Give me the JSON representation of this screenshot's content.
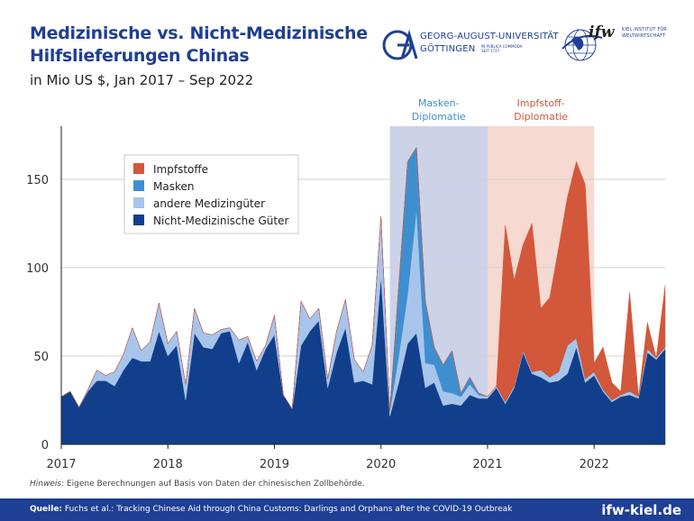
{
  "header": {
    "title": "Medizinische vs. Nicht-Medizinische Hilfslieferungen Chinas",
    "subtitle": "in Mio US $, Jan 2017 – Sep 2022"
  },
  "logos": {
    "goettingen_line1": "GEORG-AUGUST-UNIVERSITÄT",
    "goettingen_line2": "GÖTTINGEN",
    "goettingen_motto": "IN PUBLICA COMMODA\nSEIT 1737",
    "ifw_word": "ifw",
    "ifw_line1": "KIEL INSTITUT FÜR",
    "ifw_line2": "WELTWIRTSCHAFT"
  },
  "note": {
    "label": "Hinweis",
    "text": ": Eigene Berechnungen auf Basis von Daten der chinesischen Zollbehörde."
  },
  "footer": {
    "source_label": "Quelle:",
    "source_text": " Fuchs et al.: Tracking Chinese Aid through China Customs: Darlings and Orphans after the COVID-19 Outbreak",
    "brand": "ifw-kiel.de"
  },
  "chart_data": {
    "type": "area",
    "stacked": true,
    "x": [
      "2017-01",
      "2017-02",
      "2017-03",
      "2017-04",
      "2017-05",
      "2017-06",
      "2017-07",
      "2017-08",
      "2017-09",
      "2017-10",
      "2017-11",
      "2017-12",
      "2018-01",
      "2018-02",
      "2018-03",
      "2018-04",
      "2018-05",
      "2018-06",
      "2018-07",
      "2018-08",
      "2018-09",
      "2018-10",
      "2018-11",
      "2018-12",
      "2019-01",
      "2019-02",
      "2019-03",
      "2019-04",
      "2019-05",
      "2019-06",
      "2019-07",
      "2019-08",
      "2019-09",
      "2019-10",
      "2019-11",
      "2019-12",
      "2020-01",
      "2020-02",
      "2020-03",
      "2020-04",
      "2020-05",
      "2020-06",
      "2020-07",
      "2020-08",
      "2020-09",
      "2020-10",
      "2020-11",
      "2020-12",
      "2021-01",
      "2021-02",
      "2021-03",
      "2021-04",
      "2021-05",
      "2021-06",
      "2021-07",
      "2021-08",
      "2021-09",
      "2021-10",
      "2021-11",
      "2021-12",
      "2022-01",
      "2022-02",
      "2022-03",
      "2022-04",
      "2022-05",
      "2022-06",
      "2022-07",
      "2022-08",
      "2022-09"
    ],
    "x_tick_labels": [
      "2017",
      "2018",
      "2019",
      "2020",
      "2021",
      "2022"
    ],
    "ylim": [
      0,
      180
    ],
    "y_ticks": [
      0,
      50,
      100,
      150
    ],
    "grid": true,
    "legend_position": "top-left",
    "series": [
      {
        "name": "Nicht-Medizinische Güter",
        "color": "#123f8c",
        "values": [
          27,
          30,
          21,
          30,
          36,
          36,
          33,
          42,
          49,
          47,
          47,
          64,
          50,
          56,
          25,
          63,
          55,
          54,
          63,
          64,
          46,
          58,
          42,
          54,
          62,
          28,
          20,
          56,
          64,
          70,
          32,
          52,
          66,
          35,
          36,
          34,
          95,
          16,
          35,
          57,
          63,
          32,
          35,
          22,
          23,
          22,
          28,
          26,
          26,
          32,
          23,
          32,
          52,
          40,
          38,
          35,
          36,
          40,
          55,
          35,
          39,
          30,
          24,
          27,
          28,
          26,
          52,
          48,
          54
        ]
      },
      {
        "name": "andere Medizingüter",
        "color": "#a7c5eb",
        "values": [
          0,
          0,
          0,
          1,
          6,
          3,
          8,
          9,
          17,
          6,
          11,
          16,
          7,
          8,
          9,
          14,
          8,
          8,
          2,
          2,
          13,
          3,
          5,
          2,
          11,
          0,
          0,
          25,
          7,
          7,
          5,
          12,
          16,
          13,
          5,
          22,
          34,
          3,
          15,
          28,
          70,
          14,
          10,
          8,
          6,
          5,
          6,
          2,
          1,
          1,
          1,
          1,
          1,
          1,
          4,
          3,
          5,
          16,
          5,
          2,
          2,
          1,
          1,
          1,
          2,
          1,
          2,
          1,
          1
        ]
      },
      {
        "name": "Masken",
        "color": "#3e8fd0",
        "values": [
          0,
          0,
          0,
          0,
          0,
          0,
          0,
          0,
          0,
          0,
          0,
          0,
          0,
          0,
          0,
          0,
          0,
          0,
          0,
          0,
          0,
          0,
          0,
          0,
          0,
          0,
          0,
          0,
          0,
          0,
          0,
          0,
          0,
          0,
          0,
          0,
          0,
          0,
          40,
          75,
          35,
          35,
          10,
          15,
          24,
          2,
          4,
          1,
          0,
          0,
          0,
          0,
          0,
          0,
          0,
          0,
          0,
          0,
          0,
          0,
          0,
          0,
          0,
          0,
          0,
          0,
          0,
          0,
          0
        ]
      },
      {
        "name": "Impfstoffe",
        "color": "#d3573a",
        "values": [
          0,
          0,
          0,
          0,
          0,
          0,
          0,
          0,
          0,
          0,
          0,
          0,
          0,
          0,
          0,
          0,
          0,
          0,
          0,
          0,
          0,
          0,
          0,
          0,
          0,
          0,
          0,
          0,
          0,
          0,
          0,
          0,
          0,
          0,
          0,
          0,
          0,
          0,
          0,
          0,
          0,
          0,
          0,
          0,
          0,
          0,
          0,
          0,
          0,
          0,
          100,
          60,
          60,
          84,
          35,
          45,
          70,
          84,
          100,
          110,
          5,
          24,
          10,
          2,
          56,
          0,
          15,
          0,
          35
        ]
      }
    ],
    "highlights": [
      {
        "label": "Masken-\nDiplomatie",
        "from": "2020-02",
        "to": "2020-12",
        "color": "#ccd3e8",
        "text_color": "#3e8fd0"
      },
      {
        "label": "Impfstoff-\nDiplomatie",
        "from": "2021-01",
        "to": "2021-12",
        "color": "#f6d9d0",
        "text_color": "#d3573a"
      }
    ],
    "legend_order": [
      "Impfstoffe",
      "Masken",
      "andere Medizingüter",
      "Nicht-Medizinische Güter"
    ]
  }
}
